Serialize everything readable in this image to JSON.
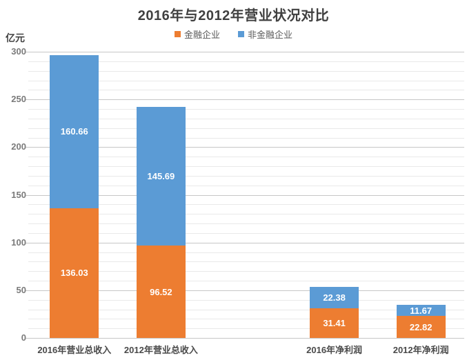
{
  "chart_data": {
    "type": "bar",
    "subtype": "stacked",
    "title": "2016年与2012年营业状况对比",
    "ylabel": "亿元",
    "categories": [
      "2016年营业总收入",
      "2012年营业总收入",
      "2016年净利润",
      "2012年净利润"
    ],
    "series": [
      {
        "name": "金融企业",
        "color": "#ED7D31",
        "values": [
          136.03,
          96.52,
          31.41,
          22.82
        ]
      },
      {
        "name": "非金融企业",
        "color": "#5B9BD5",
        "values": [
          160.66,
          145.69,
          22.38,
          11.67
        ]
      }
    ],
    "ylim": [
      0,
      300
    ],
    "y_ticks": [
      0,
      50,
      100,
      150,
      200,
      250,
      300
    ],
    "y_major_step": 50,
    "y_minor_step": 10,
    "grid": true,
    "legend_position": "top",
    "data_labels": true,
    "slot_count": 5,
    "category_slots": [
      0,
      1,
      3,
      4
    ]
  }
}
